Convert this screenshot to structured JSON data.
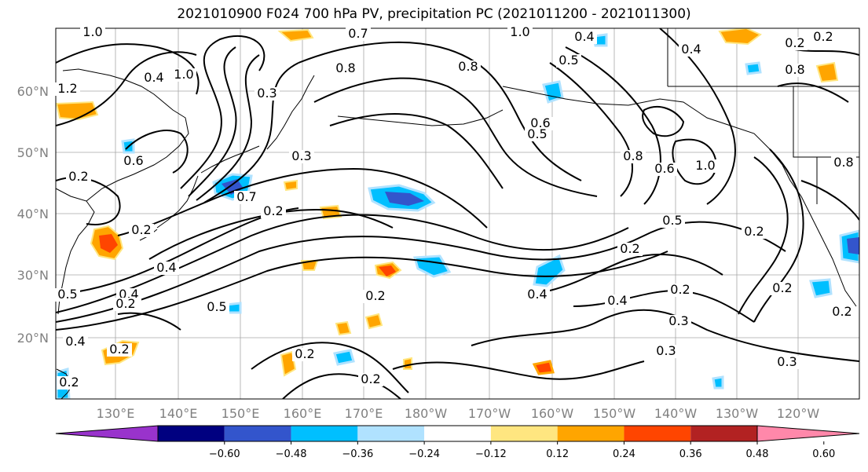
{
  "title": "2021010900 F024 700 hPa PV, precipitation PC (2021011200 - 2021011300)",
  "chart_data": {
    "type": "contour-map",
    "title": "2021010900 F024 700 hPa PV, precipitation PC (2021011200 - 2021011300)",
    "lon_ticks": [
      "130°E",
      "140°E",
      "150°E",
      "160°E",
      "170°E",
      "180°W",
      "170°W",
      "160°W",
      "150°W",
      "140°W",
      "130°W",
      "120°W"
    ],
    "lat_ticks": [
      "60°N",
      "50°N",
      "40°N",
      "30°N",
      "20°N"
    ],
    "grid": true,
    "colorbar": {
      "orientation": "horizontal",
      "extend": "both",
      "tick_labels": [
        "−0.60",
        "−0.48",
        "−0.36",
        "−0.24",
        "−0.12",
        "0.12",
        "0.24",
        "0.36",
        "0.48",
        "0.60"
      ],
      "colors": [
        "#9933cc",
        "#000080",
        "#3355cc",
        "#00bfff",
        "#b0e2ff",
        "#ffffff",
        "#ffe680",
        "#ffa500",
        "#ff4500",
        "#b22222",
        "#ff88aa"
      ]
    },
    "contour_labels": [
      "1.0",
      "0.7",
      "1.0",
      "0.4",
      "0.2",
      "0.2",
      "1.2",
      "0.4",
      "1.0",
      "0.3",
      "0.8",
      "0.8",
      "0.5",
      "0.4",
      "0.6",
      "0.5",
      "0.8",
      "0.6",
      "0.2",
      "0.6",
      "1.0",
      "0.8",
      "0.8",
      "0.7",
      "0.3",
      "0.2",
      "0.2",
      "0.4",
      "0.5",
      "0.5",
      "0.2",
      "0.2",
      "0.4",
      "0.5",
      "0.4",
      "0.2",
      "0.2",
      "0.4",
      "0.3",
      "0.2",
      "0.3",
      "0.2",
      "0.3",
      "0.2",
      "0.2",
      "0.2",
      "0.4",
      "0.2",
      "0.2"
    ]
  }
}
